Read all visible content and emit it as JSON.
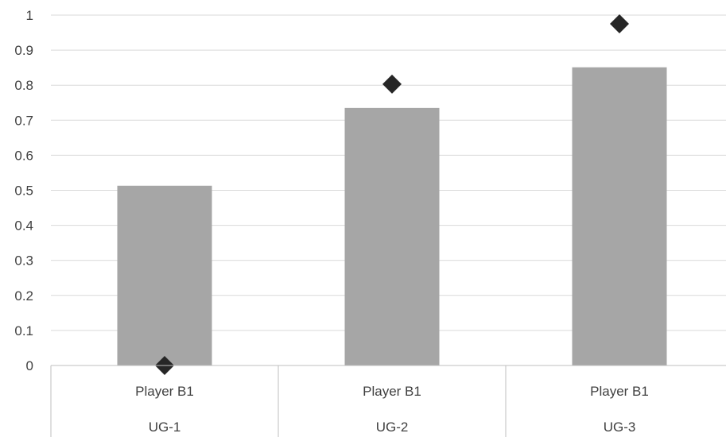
{
  "chart_data": {
    "type": "bar",
    "categories": [
      {
        "inner": "Player B1",
        "outer": "UG-1"
      },
      {
        "inner": "Player B1",
        "outer": "UG-2"
      },
      {
        "inner": "Player B1",
        "outer": "UG-3"
      }
    ],
    "series": [
      {
        "type": "bar",
        "values": [
          0.513,
          0.735,
          0.851
        ],
        "color": "#a6a6a6"
      },
      {
        "type": "scatter",
        "marker": "diamond",
        "values": [
          0.0,
          0.803,
          0.975
        ],
        "color": "#262626"
      }
    ],
    "ylim": [
      0,
      1
    ],
    "yticks": [
      "0",
      "0.1",
      "0.2",
      "0.3",
      "0.4",
      "0.5",
      "0.6",
      "0.7",
      "0.8",
      "0.9",
      "1"
    ],
    "grid": true,
    "legend": "none"
  }
}
